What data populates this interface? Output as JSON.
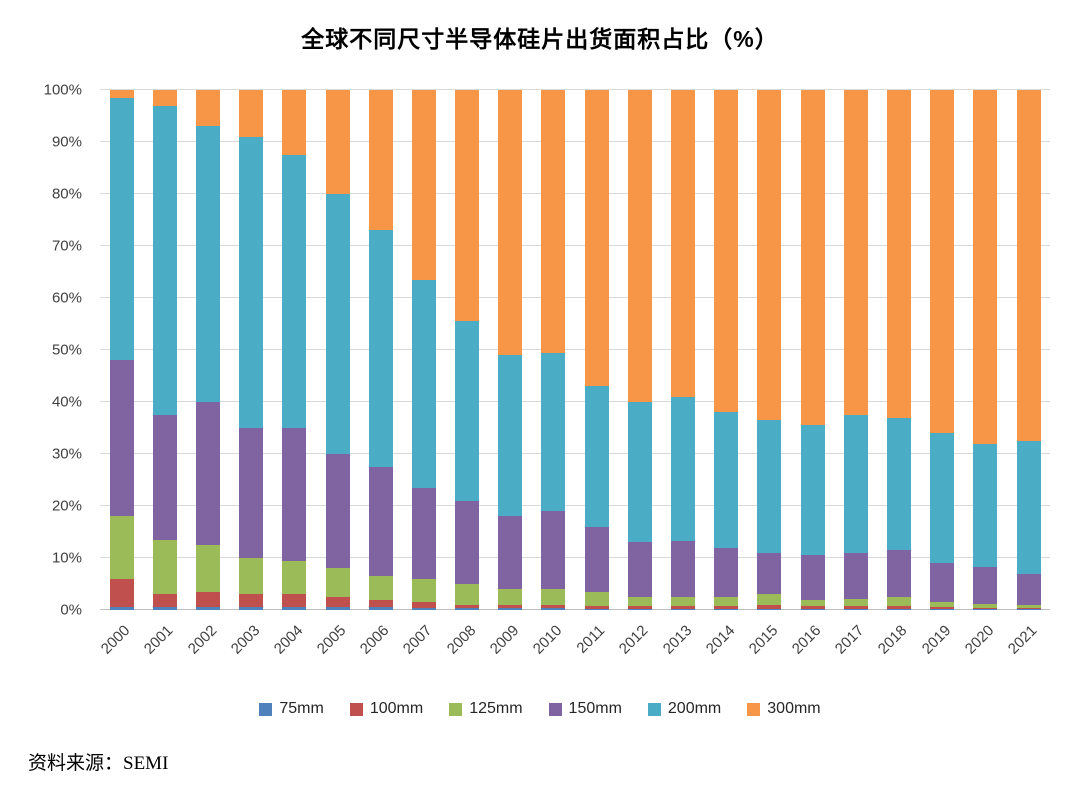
{
  "title": "全球不同尺寸半导体硅片出货面积占比（%）",
  "source": "资料来源：SEMI",
  "chart_data": {
    "type": "bar",
    "stacked": true,
    "title": "全球不同尺寸半导体硅片出货面积占比（%）",
    "xlabel": "",
    "ylabel": "",
    "ylim": [
      0,
      100
    ],
    "ytick_step": 10,
    "ytick_suffix": "%",
    "grid": true,
    "legend_position": "bottom",
    "gridline_color": "#d9d9d9",
    "categories": [
      "2000",
      "2001",
      "2002",
      "2003",
      "2004",
      "2005",
      "2006",
      "2007",
      "2008",
      "2009",
      "2010",
      "2011",
      "2012",
      "2013",
      "2014",
      "2015",
      "2016",
      "2017",
      "2018",
      "2019",
      "2020",
      "2021"
    ],
    "series": [
      {
        "name": "75mm",
        "color": "#4F81BD",
        "values": [
          0.5,
          0.5,
          0.5,
          0.5,
          0.5,
          0.5,
          0.5,
          0.3,
          0.3,
          0.3,
          0.3,
          0.2,
          0.2,
          0.2,
          0.2,
          0.2,
          0.2,
          0.2,
          0.2,
          0.1,
          0.1,
          0.1
        ]
      },
      {
        "name": "100mm",
        "color": "#C0504D",
        "values": [
          5.5,
          2.5,
          3.0,
          2.5,
          2.5,
          2.0,
          1.5,
          1.2,
          0.7,
          0.7,
          0.7,
          0.6,
          0.5,
          0.5,
          0.5,
          0.8,
          0.5,
          0.5,
          0.5,
          0.4,
          0.3,
          0.3
        ]
      },
      {
        "name": "125mm",
        "color": "#9BBB59",
        "values": [
          12.0,
          10.5,
          9.0,
          7.0,
          6.5,
          5.5,
          4.5,
          4.5,
          4.0,
          3.0,
          3.0,
          2.7,
          1.8,
          1.8,
          1.8,
          2.0,
          1.3,
          1.5,
          1.8,
          1.0,
          0.8,
          0.6
        ]
      },
      {
        "name": "150mm",
        "color": "#8064A2",
        "values": [
          30.0,
          24.0,
          27.5,
          25.0,
          25.5,
          22.0,
          21.0,
          17.5,
          16.0,
          14.0,
          15.0,
          12.5,
          10.5,
          10.7,
          9.5,
          8.0,
          8.5,
          8.8,
          9.0,
          7.5,
          7.0,
          6.0
        ]
      },
      {
        "name": "200mm",
        "color": "#4BACC6",
        "values": [
          50.5,
          59.5,
          53.0,
          56.0,
          52.5,
          50.0,
          45.5,
          40.0,
          34.5,
          31.0,
          30.5,
          27.0,
          27.0,
          27.8,
          26.0,
          25.5,
          25.0,
          26.5,
          25.5,
          25.0,
          23.8,
          25.5
        ]
      },
      {
        "name": "300mm",
        "color": "#F79646",
        "values": [
          1.5,
          3.0,
          7.0,
          9.0,
          12.5,
          20.0,
          27.0,
          36.5,
          44.5,
          51.0,
          50.5,
          57.0,
          60.0,
          59.0,
          62.0,
          63.5,
          64.5,
          62.5,
          63.0,
          66.0,
          68.0,
          67.5
        ]
      }
    ]
  }
}
